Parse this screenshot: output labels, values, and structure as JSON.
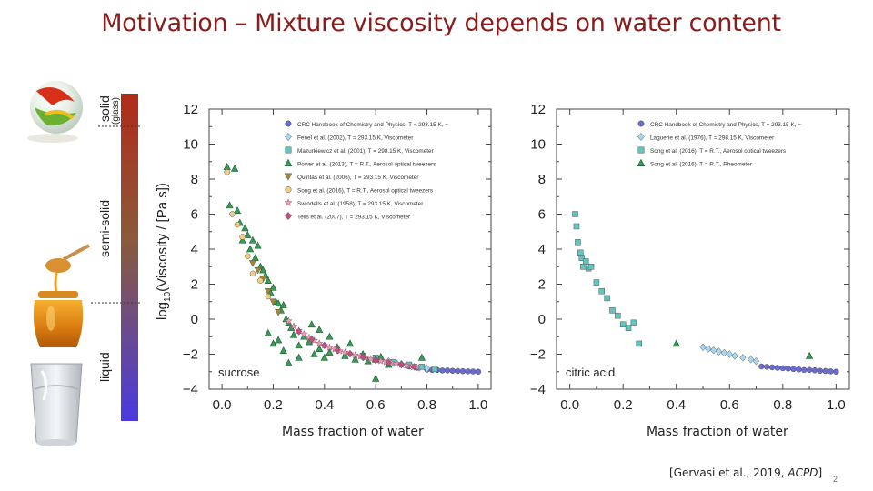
{
  "slide": {
    "title": "Motivation – Mixture viscosity depends on water content",
    "caption_left": "Mass fraction of water",
    "caption_right": "Mass fraction of water",
    "citation_prefix": "[Gervasi et al., 2019, ",
    "citation_journal": "ACPD",
    "citation_suffix": "]",
    "page_number": "2"
  },
  "phase_bar": {
    "labels": [
      "solid",
      "(glass)",
      "semi-solid",
      "liquid"
    ],
    "colors": [
      "#b22a1a",
      "#8a5a3a",
      "#4a3ae0"
    ]
  },
  "chart_data": [
    {
      "type": "scatter",
      "annotation": "sucrose",
      "ylabel": "log10(Viscosity / [Pa s])",
      "xlim": [
        -0.05,
        1.05
      ],
      "ylim": [
        -4,
        12
      ],
      "xticks": [
        "0.0",
        "0.2",
        "0.4",
        "0.6",
        "0.8",
        "1.0"
      ],
      "yticks": [
        "−4",
        "−2",
        "0",
        "2",
        "4",
        "6",
        "8",
        "10",
        "12"
      ],
      "legend_position": "top-right",
      "series": [
        {
          "name": "CRC Handbook of Chemistry and Physics, T = 293.15 K, −",
          "marker": "circle",
          "color": "#6a6ad0",
          "points": [
            [
              0.8,
              -2.88
            ],
            [
              0.82,
              -2.9
            ],
            [
              0.84,
              -2.9
            ],
            [
              0.86,
              -2.93
            ],
            [
              0.88,
              -2.93
            ],
            [
              0.9,
              -2.95
            ],
            [
              0.92,
              -2.96
            ],
            [
              0.94,
              -2.97
            ],
            [
              0.96,
              -2.98
            ],
            [
              0.98,
              -2.99
            ],
            [
              1.0,
              -3.0
            ],
            [
              0.73,
              -2.7
            ],
            [
              0.76,
              -2.78
            ]
          ]
        },
        {
          "name": "Fenel et al. (2002), T = 293.15 K, Viscometer",
          "marker": "diamond",
          "color": "#a8d8f0",
          "points": [
            [
              0.62,
              -2.3
            ],
            [
              0.65,
              -2.4
            ],
            [
              0.68,
              -2.5
            ],
            [
              0.7,
              -2.55
            ],
            [
              0.72,
              -2.62
            ],
            [
              0.74,
              -2.7
            ],
            [
              0.77,
              -2.78
            ],
            [
              0.8,
              -2.82
            ]
          ]
        },
        {
          "name": "Mazurkiewicz et al. (2001), T = 298.15 K, Viscometer",
          "marker": "square",
          "color": "#5ec8c0",
          "points": [
            [
              0.55,
              -2.1
            ],
            [
              0.6,
              -2.2
            ],
            [
              0.67,
              -2.45
            ],
            [
              0.73,
              -2.6
            ],
            [
              0.78,
              -2.72
            ],
            [
              0.83,
              -2.85
            ]
          ]
        },
        {
          "name": "Power et al. (2013), T = R.T., Aerosol optical tweezers",
          "marker": "triangle",
          "color": "#3a9a5a",
          "points": [
            [
              0.02,
              8.7
            ],
            [
              0.05,
              8.6
            ],
            [
              0.03,
              6.5
            ],
            [
              0.06,
              6.2
            ],
            [
              0.07,
              5.5
            ],
            [
              0.08,
              4.5
            ],
            [
              0.09,
              5.2
            ],
            [
              0.1,
              4.8
            ],
            [
              0.11,
              4.0
            ],
            [
              0.12,
              4.5
            ],
            [
              0.13,
              3.5
            ],
            [
              0.14,
              4.2
            ],
            [
              0.15,
              3.0
            ],
            [
              0.16,
              2.8
            ],
            [
              0.17,
              2.5
            ],
            [
              0.18,
              2.2
            ],
            [
              0.19,
              1.5
            ],
            [
              0.2,
              1.8
            ],
            [
              0.21,
              1.0
            ],
            [
              0.22,
              0.9
            ],
            [
              0.23,
              0.5
            ],
            [
              0.24,
              0.8
            ],
            [
              0.25,
              0.0
            ],
            [
              0.26,
              -0.2
            ],
            [
              0.27,
              -0.5
            ],
            [
              0.18,
              -0.8
            ],
            [
              0.2,
              -1.4
            ],
            [
              0.22,
              -1.2
            ],
            [
              0.24,
              -1.8
            ],
            [
              0.28,
              -0.9
            ],
            [
              0.3,
              -1.5
            ],
            [
              0.32,
              -1.0
            ],
            [
              0.34,
              -1.3
            ],
            [
              0.36,
              -2.0
            ],
            [
              0.38,
              -1.7
            ],
            [
              0.4,
              -2.2
            ],
            [
              0.42,
              -1.9
            ],
            [
              0.45,
              -1.6
            ],
            [
              0.48,
              -2.1
            ],
            [
              0.5,
              -1.4
            ],
            [
              0.52,
              -2.3
            ],
            [
              0.55,
              -2.0
            ],
            [
              0.57,
              -2.4
            ],
            [
              0.6,
              -2.3
            ],
            [
              0.62,
              -2.15
            ],
            [
              0.65,
              -2.6
            ],
            [
              0.35,
              -0.3
            ],
            [
              0.38,
              -0.6
            ],
            [
              0.42,
              -1.0
            ],
            [
              0.6,
              -3.4
            ],
            [
              0.78,
              -2.2
            ],
            [
              0.26,
              -2.5
            ],
            [
              0.3,
              -2.2
            ]
          ]
        },
        {
          "name": "Quintas et al. (2006), T = 293.15 K, Viscometer",
          "marker": "triangle-down",
          "color": "#a08a30",
          "points": [
            [
              0.12,
              3.2
            ],
            [
              0.14,
              2.8
            ],
            [
              0.16,
              2.3
            ],
            [
              0.18,
              1.6
            ],
            [
              0.2,
              1.0
            ],
            [
              0.22,
              0.4
            ]
          ]
        },
        {
          "name": "Song et al. (2016), T = R.T., Aerosol optical tweezers",
          "marker": "circle",
          "color": "#f0d080",
          "points": [
            [
              0.02,
              8.4
            ],
            [
              0.04,
              6.0
            ],
            [
              0.06,
              5.4
            ],
            [
              0.08,
              4.7
            ],
            [
              0.1,
              3.6
            ],
            [
              0.12,
              2.6
            ],
            [
              0.15,
              2.2
            ],
            [
              0.18,
              1.3
            ]
          ]
        },
        {
          "name": "Swindells et al. (1958), T = 293.15 K, Viscometer",
          "marker": "star",
          "color": "#e8a0b8",
          "points": [
            [
              0.26,
              -0.1
            ],
            [
              0.28,
              -0.4
            ],
            [
              0.3,
              -0.65
            ],
            [
              0.32,
              -0.85
            ],
            [
              0.34,
              -1.05
            ],
            [
              0.36,
              -1.22
            ],
            [
              0.38,
              -1.38
            ],
            [
              0.4,
              -1.5
            ],
            [
              0.42,
              -1.62
            ],
            [
              0.44,
              -1.72
            ],
            [
              0.46,
              -1.82
            ],
            [
              0.48,
              -1.9
            ],
            [
              0.5,
              -1.98
            ],
            [
              0.52,
              -2.06
            ],
            [
              0.54,
              -2.13
            ],
            [
              0.56,
              -2.2
            ],
            [
              0.58,
              -2.27
            ],
            [
              0.6,
              -2.33
            ],
            [
              0.62,
              -2.39
            ],
            [
              0.64,
              -2.44
            ],
            [
              0.66,
              -2.5
            ],
            [
              0.68,
              -2.55
            ],
            [
              0.7,
              -2.6
            ],
            [
              0.72,
              -2.65
            ],
            [
              0.74,
              -2.7
            ],
            [
              0.76,
              -2.74
            ]
          ]
        },
        {
          "name": "Telis et al. (2007), T = 293.15 K, Viscometer",
          "marker": "diamond",
          "color": "#c05080",
          "points": [
            [
              0.3,
              -0.7
            ],
            [
              0.35,
              -1.15
            ],
            [
              0.4,
              -1.5
            ],
            [
              0.45,
              -1.78
            ],
            [
              0.5,
              -1.98
            ],
            [
              0.55,
              -2.18
            ],
            [
              0.6,
              -2.35
            ],
            [
              0.65,
              -2.48
            ],
            [
              0.7,
              -2.6
            ],
            [
              0.75,
              -2.72
            ]
          ]
        }
      ]
    },
    {
      "type": "scatter",
      "annotation": "citric acid",
      "xlim": [
        -0.05,
        1.05
      ],
      "ylim": [
        -4,
        12
      ],
      "xticks": [
        "0.0",
        "0.2",
        "0.4",
        "0.6",
        "0.8",
        "1.0"
      ],
      "yticks": [
        "−4",
        "−2",
        "0",
        "2",
        "4",
        "6",
        "8",
        "10",
        "12"
      ],
      "legend_position": "top-right",
      "series": [
        {
          "name": "CRC Handbook of Chemistry and Physics, T = 293.15 K, −",
          "marker": "circle",
          "color": "#6a6ad0",
          "points": [
            [
              0.72,
              -2.7
            ],
            [
              0.74,
              -2.72
            ],
            [
              0.76,
              -2.75
            ],
            [
              0.78,
              -2.78
            ],
            [
              0.8,
              -2.8
            ],
            [
              0.82,
              -2.82
            ],
            [
              0.84,
              -2.85
            ],
            [
              0.86,
              -2.87
            ],
            [
              0.88,
              -2.9
            ],
            [
              0.9,
              -2.9
            ],
            [
              0.92,
              -2.92
            ],
            [
              0.94,
              -2.95
            ],
            [
              0.96,
              -2.96
            ],
            [
              0.98,
              -2.98
            ],
            [
              1.0,
              -3.0
            ]
          ]
        },
        {
          "name": "Laguerie et al. (1976), T = 298.15 K, Viscometer",
          "marker": "diamond",
          "color": "#a8d8f0",
          "points": [
            [
              0.5,
              -1.6
            ],
            [
              0.52,
              -1.7
            ],
            [
              0.54,
              -1.78
            ],
            [
              0.56,
              -1.85
            ],
            [
              0.58,
              -1.92
            ],
            [
              0.6,
              -2.0
            ],
            [
              0.62,
              -2.1
            ],
            [
              0.65,
              -2.2
            ],
            [
              0.68,
              -2.3
            ],
            [
              0.7,
              -2.4
            ]
          ]
        },
        {
          "name": "Song et al. (2016), T = R.T., Aerosol optical tweezers",
          "marker": "square",
          "color": "#5ec8c0",
          "points": [
            [
              0.02,
              6.0
            ],
            [
              0.025,
              5.3
            ],
            [
              0.03,
              4.4
            ],
            [
              0.04,
              3.8
            ],
            [
              0.045,
              3.5
            ],
            [
              0.05,
              3.0
            ],
            [
              0.06,
              3.3
            ],
            [
              0.07,
              2.9
            ],
            [
              0.08,
              3.0
            ],
            [
              0.1,
              2.1
            ],
            [
              0.12,
              1.6
            ],
            [
              0.14,
              1.2
            ],
            [
              0.16,
              0.5
            ],
            [
              0.18,
              0.2
            ],
            [
              0.2,
              -0.3
            ],
            [
              0.22,
              -0.5
            ],
            [
              0.24,
              -0.2
            ],
            [
              0.26,
              -1.4
            ]
          ]
        },
        {
          "name": "Song et al. (2016), T = R.T., Rheometer",
          "marker": "triangle",
          "color": "#3a9a5a",
          "points": [
            [
              0.4,
              -1.4
            ],
            [
              0.9,
              -2.1
            ]
          ]
        }
      ]
    }
  ]
}
